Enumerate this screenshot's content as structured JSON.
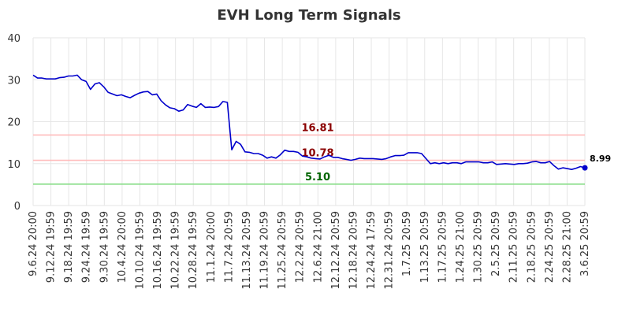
{
  "chart_data": {
    "type": "line",
    "title": "EVH Long Term Signals",
    "xlabel": "",
    "ylabel": "",
    "ylim": [
      0,
      40
    ],
    "yticks": [
      0,
      10,
      20,
      30,
      40
    ],
    "grid": true,
    "x_tick_labels": [
      "9.6.24 20:00",
      "9.12.24 19:59",
      "9.18.24 19:59",
      "9.24.24 19:59",
      "9.30.24 19:59",
      "10.4.24 20:00",
      "10.10.24 19:59",
      "10.16.24 19:59",
      "10.22.24 19:59",
      "10.28.24 19:59",
      "11.1.24 20:00",
      "11.7.24 20:59",
      "11.13.24 20:59",
      "11.19.24 20:59",
      "11.25.24 20:59",
      "12.2.24 20:59",
      "12.6.24 21:00",
      "12.12.24 20:59",
      "12.18.24 20:59",
      "12.24.24 17:59",
      "12.31.24 20:59",
      "1.7.25 20:59",
      "1.13.25 20:59",
      "1.17.25 20:59",
      "1.24.25 21:00",
      "1.30.25 20:59",
      "2.5.25 20:59",
      "2.11.25 20:59",
      "2.18.25 20:59",
      "2.24.25 20:59",
      "2.28.25 21:00",
      "3.6.25 20:59"
    ],
    "series": [
      {
        "color": "#0000cc",
        "values": [
          31.1,
          30.4,
          30.4,
          30.2,
          30.2,
          30.2,
          30.5,
          30.6,
          30.9,
          30.9,
          31.1,
          30.0,
          29.6,
          27.7,
          29.0,
          29.3,
          28.3,
          27.0,
          26.6,
          26.2,
          26.4,
          26.0,
          25.7,
          26.3,
          26.8,
          27.1,
          27.2,
          26.4,
          26.6,
          25.0,
          24.0,
          23.3,
          23.1,
          22.5,
          22.8,
          24.1,
          23.7,
          23.4,
          24.3,
          23.4,
          23.5,
          23.4,
          23.6,
          24.8,
          24.6,
          13.3,
          15.3,
          14.6,
          12.8,
          12.7,
          12.4,
          12.4,
          12.0,
          11.3,
          11.6,
          11.3,
          12.1,
          13.2,
          12.9,
          12.9,
          12.7,
          11.8,
          11.6,
          11.3,
          11.2,
          11.1,
          11.6,
          12.0,
          11.5,
          11.5,
          11.2,
          11.0,
          10.8,
          11.0,
          11.3,
          11.2,
          11.2,
          11.2,
          11.1,
          11.0,
          11.2,
          11.6,
          11.9,
          11.9,
          12.0,
          12.6,
          12.6,
          12.6,
          12.4,
          11.2,
          10.0,
          10.2,
          10.0,
          10.2,
          10.0,
          10.2,
          10.2,
          10.0,
          10.4,
          10.4,
          10.4,
          10.4,
          10.2,
          10.2,
          10.4,
          9.8,
          9.9,
          10.0,
          9.9,
          9.8,
          10.0,
          10.0,
          10.1,
          10.4,
          10.5,
          10.2,
          10.2,
          10.5,
          9.5,
          8.7,
          9.0,
          8.8,
          8.6,
          8.9,
          9.3,
          8.99
        ]
      }
    ],
    "horizontal_lines": [
      {
        "value": 16.81,
        "label": "16.81",
        "line_color": "#ffbbbb",
        "label_color": "#8b0000"
      },
      {
        "value": 10.78,
        "label": "10.78",
        "line_color": "#ffbbbb",
        "label_color": "#8b0000"
      },
      {
        "value": 5.1,
        "label": "5.10",
        "line_color": "#88dd88",
        "label_color": "#006400"
      }
    ],
    "last_point_label": "8.99"
  }
}
